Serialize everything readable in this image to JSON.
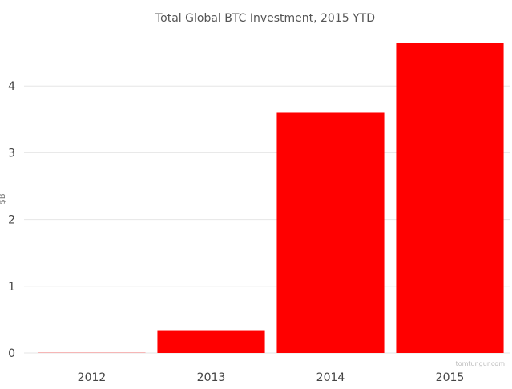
{
  "chart_data": {
    "type": "bar",
    "title": "Total Global BTC Investment, 2015 YTD",
    "xlabel": "",
    "ylabel": "$B",
    "categories": [
      "2012",
      "2013",
      "2014",
      "2015"
    ],
    "values": [
      0.0,
      0.33,
      3.6,
      4.65
    ],
    "ylim": [
      0,
      4.8
    ],
    "yticks": [
      "0",
      "1",
      "2",
      "3",
      "4"
    ],
    "grid": true,
    "legend": "none",
    "bar_color": "#ff0000",
    "watermark": "tomtungur.com"
  }
}
